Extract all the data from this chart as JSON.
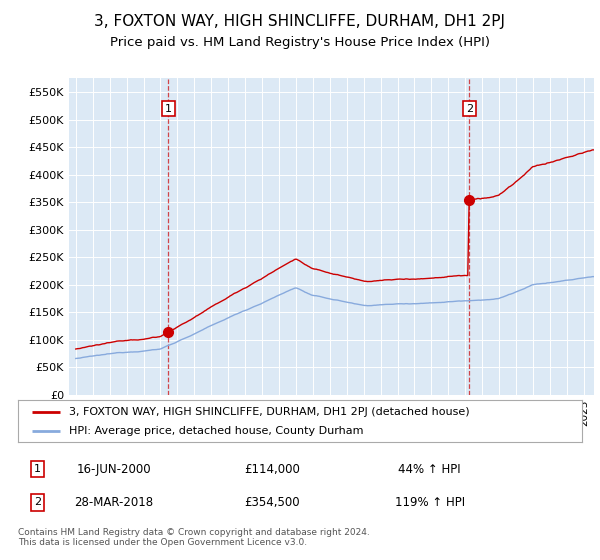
{
  "title": "3, FOXTON WAY, HIGH SHINCLIFFE, DURHAM, DH1 2PJ",
  "subtitle": "Price paid vs. HM Land Registry's House Price Index (HPI)",
  "title_fontsize": 11,
  "subtitle_fontsize": 9.5,
  "bg_color": "#dce9f5",
  "fig_bg_color": "#ffffff",
  "ylim": [
    0,
    575000
  ],
  "yticks": [
    0,
    50000,
    100000,
    150000,
    200000,
    250000,
    300000,
    350000,
    400000,
    450000,
    500000,
    550000
  ],
  "purchase1_date": 2000.46,
  "purchase1_price": 114000,
  "purchase2_date": 2018.24,
  "purchase2_price": 354500,
  "legend_line1": "3, FOXTON WAY, HIGH SHINCLIFFE, DURHAM, DH1 2PJ (detached house)",
  "legend_line2": "HPI: Average price, detached house, County Durham",
  "annotation1_date": "16-JUN-2000",
  "annotation1_price": "£114,000",
  "annotation1_hpi": "44% ↑ HPI",
  "annotation2_date": "28-MAR-2018",
  "annotation2_price": "£354,500",
  "annotation2_hpi": "119% ↑ HPI",
  "footer": "Contains HM Land Registry data © Crown copyright and database right 2024.\nThis data is licensed under the Open Government Licence v3.0.",
  "red_line_color": "#cc0000",
  "blue_line_color": "#88aadd",
  "marker_color": "#cc0000",
  "xmin": 1995,
  "xmax": 2025
}
